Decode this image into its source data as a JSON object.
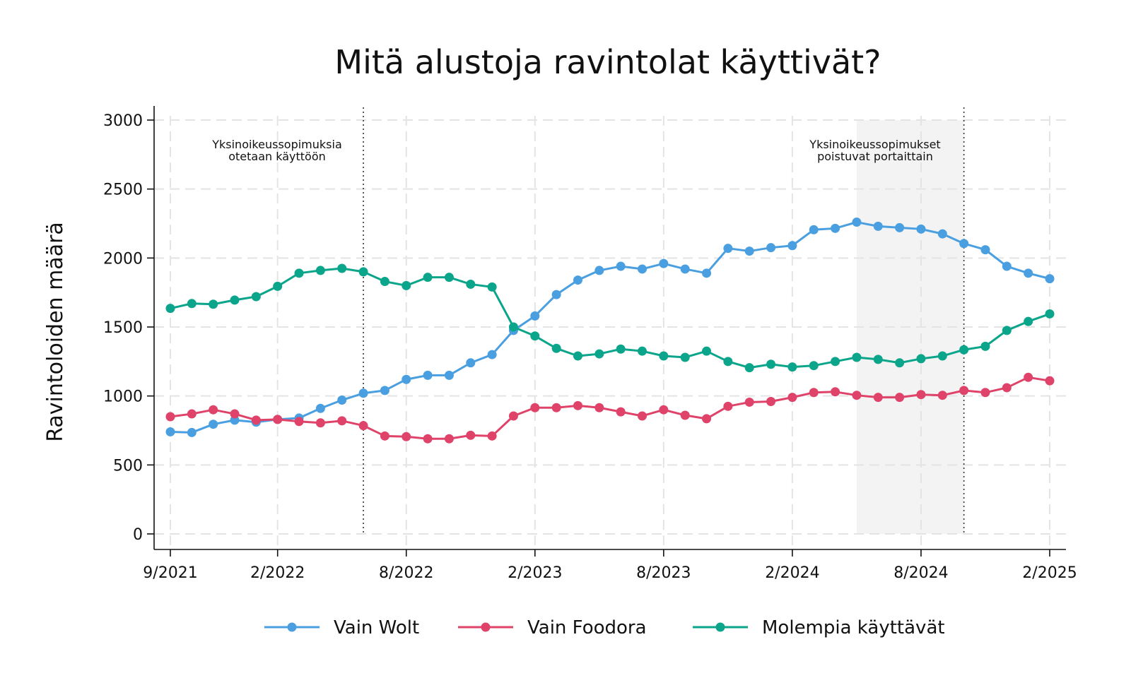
{
  "chart_data": {
    "type": "line",
    "title": "Mitä alustoja ravintolat käyttivät?",
    "xlabel": "",
    "ylabel": "Ravintoloiden määrä",
    "ylim": [
      0,
      3000
    ],
    "yticks": [
      0,
      500,
      1000,
      1500,
      2000,
      2500,
      3000
    ],
    "xtick_labels": [
      "9/2021",
      "2/2022",
      "8/2022",
      "2/2023",
      "8/2023",
      "2/2024",
      "8/2024",
      "2/2025"
    ],
    "xtick_index": [
      0,
      5,
      11,
      17,
      23,
      29,
      35,
      41
    ],
    "x_count": 42,
    "grid": true,
    "legend_position": "bottom",
    "series": [
      {
        "name": "Vain Wolt",
        "color": "#4a9fe0",
        "values": [
          740,
          735,
          795,
          825,
          810,
          830,
          840,
          910,
          970,
          1020,
          1040,
          1120,
          1150,
          1150,
          1240,
          1300,
          1475,
          1580,
          1735,
          1840,
          1910,
          1940,
          1920,
          1960,
          1920,
          1890,
          2070,
          2050,
          2075,
          2090,
          2205,
          2215,
          2260,
          2230,
          2220,
          2210,
          2175,
          2105,
          2060,
          1940,
          1890,
          1850
        ]
      },
      {
        "name": "Vain Foodora",
        "color": "#e0436a",
        "values": [
          850,
          870,
          900,
          870,
          825,
          830,
          815,
          805,
          820,
          785,
          710,
          705,
          690,
          690,
          715,
          710,
          855,
          915,
          915,
          930,
          915,
          885,
          855,
          900,
          860,
          835,
          925,
          955,
          960,
          990,
          1025,
          1030,
          1005,
          990,
          990,
          1010,
          1005,
          1040,
          1025,
          1060,
          1135,
          1110
        ]
      },
      {
        "name": "Molempia käyttävät",
        "color": "#0aa58a",
        "values": [
          1635,
          1670,
          1665,
          1695,
          1720,
          1795,
          1890,
          1910,
          1925,
          1900,
          1830,
          1800,
          1860,
          1860,
          1810,
          1790,
          1500,
          1435,
          1345,
          1290,
          1305,
          1340,
          1325,
          1290,
          1280,
          1325,
          1250,
          1205,
          1230,
          1210,
          1220,
          1250,
          1280,
          1265,
          1240,
          1270,
          1290,
          1335,
          1360,
          1475,
          1540,
          1595
        ]
      }
    ],
    "annotations": {
      "left_text_line1": "Yksinoikeussopimuksia",
      "left_text_line2": "otetaan käyttöön",
      "right_text_line1": "Yksinoikeussopimukset",
      "right_text_line2": "poistuvat portaittain"
    },
    "vlines_index": [
      9,
      37
    ],
    "shaded_index_range": [
      32,
      37
    ]
  }
}
